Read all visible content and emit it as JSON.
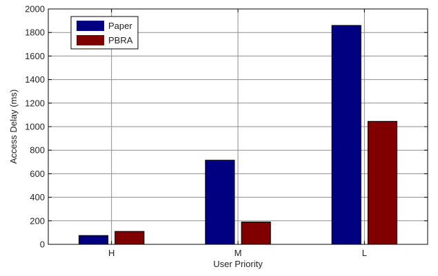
{
  "chart_data": {
    "type": "bar",
    "xlabel": "User Priority",
    "ylabel": "Access Delay (ms)",
    "ylim": [
      0,
      2000
    ],
    "yticks": [
      0,
      200,
      400,
      600,
      800,
      1000,
      1200,
      1400,
      1600,
      1800,
      2000
    ],
    "grid": true,
    "legend_position": "top-left",
    "categories": [
      "H",
      "M",
      "L"
    ],
    "series": [
      {
        "name": "Paper",
        "color": "#000080",
        "values": [
          75,
          715,
          1860
        ]
      },
      {
        "name": "PBRA",
        "color": "#800000",
        "values": [
          110,
          190,
          1045
        ]
      }
    ]
  }
}
